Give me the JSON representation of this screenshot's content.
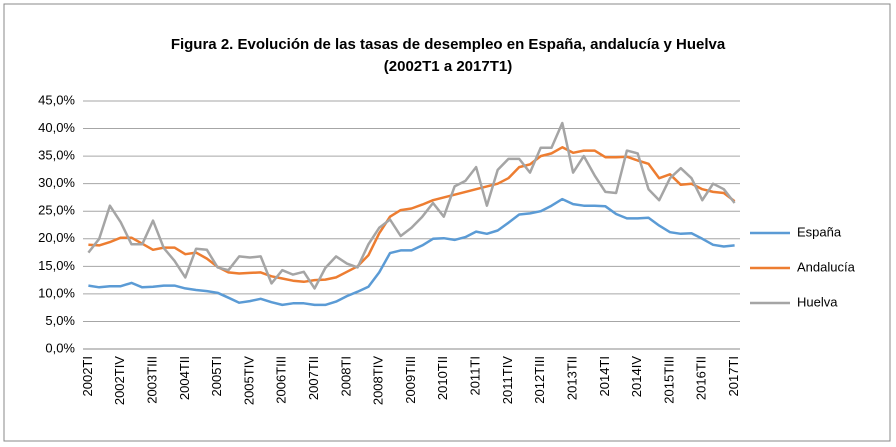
{
  "chart_data": {
    "type": "line",
    "title": "Figura 2.  Evolución de las tasas de desempleo en España, andalucía y Huelva",
    "subtitle": "(2002T1 a 2017T1)",
    "categories": [
      "2002TI",
      null,
      null,
      "2002TIV",
      null,
      null,
      "2003TIII",
      null,
      null,
      "2004TII",
      null,
      null,
      "2005TI",
      null,
      null,
      "2005TIV",
      null,
      null,
      "2006TIII",
      null,
      null,
      "2007TII",
      null,
      null,
      "2008TI",
      null,
      null,
      "2008TIV",
      null,
      null,
      "2009TIII",
      null,
      null,
      "2010TII",
      null,
      null,
      "2011TI",
      null,
      null,
      "2011TIV",
      null,
      null,
      "2012TIII",
      null,
      null,
      "2013TII",
      null,
      null,
      "2014TI",
      null,
      null,
      "2014IV",
      null,
      null,
      "2015TIII",
      null,
      null,
      "2016TII",
      null,
      null,
      "2017TI"
    ],
    "series": [
      {
        "name": "España",
        "color": "#5b9bd5",
        "values": [
          11.5,
          11.2,
          11.4,
          11.4,
          12.0,
          11.2,
          11.3,
          11.5,
          11.5,
          11.0,
          10.7,
          10.5,
          10.2,
          9.3,
          8.4,
          8.7,
          9.1,
          8.5,
          8.0,
          8.3,
          8.3,
          8.0,
          8.0,
          8.6,
          9.6,
          10.4,
          11.3,
          13.9,
          17.4,
          17.9,
          17.9,
          18.8,
          20.0,
          20.1,
          19.8,
          20.3,
          21.3,
          20.9,
          21.5,
          22.9,
          24.4,
          24.6,
          25.0,
          26.0,
          27.2,
          26.3,
          26.0,
          26.0,
          25.9,
          24.5,
          23.7,
          23.7,
          23.8,
          22.4,
          21.2,
          20.9,
          21.0,
          20.0,
          18.9,
          18.6,
          18.8
        ]
      },
      {
        "name": "Andalucía",
        "color": "#ed7d31",
        "values": [
          18.9,
          18.8,
          19.4,
          20.2,
          20.2,
          19.1,
          18.0,
          18.4,
          18.4,
          17.2,
          17.5,
          16.4,
          14.9,
          13.9,
          13.7,
          13.8,
          13.9,
          13.2,
          12.8,
          12.4,
          12.2,
          12.5,
          12.6,
          13.0,
          14.0,
          15.0,
          17.0,
          21.0,
          24.0,
          25.2,
          25.5,
          26.2,
          27.0,
          27.5,
          28.0,
          28.5,
          29.0,
          29.5,
          30.0,
          31.0,
          33.0,
          33.5,
          35.0,
          35.5,
          36.6,
          35.6,
          36.0,
          36.0,
          34.8,
          34.8,
          34.9,
          34.2,
          33.6,
          31.0,
          31.7,
          29.8,
          30.0,
          29.0,
          28.5,
          28.3,
          26.8
        ]
      },
      {
        "name": "Huelva",
        "color": "#a5a5a5",
        "values": [
          17.5,
          20.0,
          26.0,
          23.0,
          19.0,
          19.0,
          23.3,
          18.3,
          16.0,
          13.0,
          18.2,
          18.0,
          14.8,
          14.3,
          16.8,
          16.6,
          16.8,
          11.9,
          14.3,
          13.5,
          14.0,
          11.0,
          14.7,
          16.8,
          15.5,
          14.8,
          19.0,
          22.0,
          23.5,
          20.5,
          22.0,
          24.0,
          26.5,
          24.0,
          29.5,
          30.5,
          33.0,
          26.0,
          32.5,
          34.5,
          34.5,
          32.0,
          36.5,
          36.5,
          41.0,
          32.0,
          35.0,
          31.5,
          28.5,
          28.3,
          36.0,
          35.5,
          29.0,
          27.0,
          31.0,
          32.8,
          31.0,
          27.0,
          30.0,
          29.0,
          26.5
        ]
      }
    ],
    "ylim": [
      0,
      45
    ],
    "yticks": [
      {
        "value": 0,
        "label": "0,0%"
      },
      {
        "value": 5,
        "label": "5,0%"
      },
      {
        "value": 10,
        "label": "10,0%"
      },
      {
        "value": 15,
        "label": "15,0%"
      },
      {
        "value": 20,
        "label": "20,0%"
      },
      {
        "value": 25,
        "label": "25,0%"
      },
      {
        "value": 30,
        "label": "30,0%"
      },
      {
        "value": 35,
        "label": "35,0%"
      },
      {
        "value": 40,
        "label": "40,0%"
      },
      {
        "value": 45,
        "label": "45,0%"
      }
    ],
    "grid": true,
    "legend": "right"
  }
}
